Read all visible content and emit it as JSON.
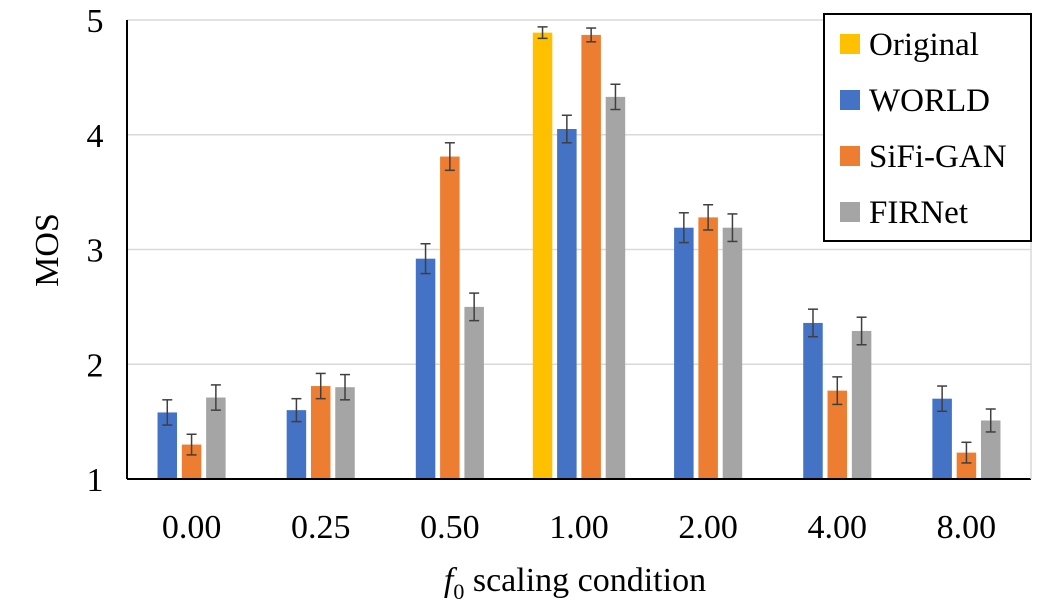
{
  "chart_data": {
    "type": "bar",
    "title": "",
    "xlabel_prefix": "f",
    "xlabel_subscript": "0",
    "xlabel_suffix": " scaling condition",
    "ylabel": "MOS",
    "ylim": [
      1,
      5
    ],
    "yticks": [
      "1",
      "2",
      "3",
      "4",
      "5"
    ],
    "grid": true,
    "legend_position": "top-right",
    "categories": [
      "0.00",
      "0.25",
      "0.50",
      "1.00",
      "2.00",
      "4.00",
      "8.00"
    ],
    "series": [
      {
        "name": "Original",
        "color": "#FFC000",
        "values": [
          null,
          null,
          null,
          4.89,
          null,
          null,
          null
        ],
        "errors": [
          null,
          null,
          null,
          0.05,
          null,
          null,
          null
        ]
      },
      {
        "name": "WORLD",
        "color": "#4472C4",
        "values": [
          1.58,
          1.6,
          2.92,
          4.05,
          3.19,
          2.36,
          1.7
        ],
        "errors": [
          0.11,
          0.1,
          0.13,
          0.12,
          0.13,
          0.12,
          0.11
        ]
      },
      {
        "name": "SiFi-GAN",
        "color": "#ED7D31",
        "values": [
          1.3,
          1.81,
          3.81,
          4.87,
          3.28,
          1.77,
          1.23
        ],
        "errors": [
          0.09,
          0.11,
          0.12,
          0.06,
          0.11,
          0.12,
          0.09
        ]
      },
      {
        "name": "FIRNet",
        "color": "#A5A5A5",
        "values": [
          1.71,
          1.8,
          2.5,
          4.33,
          3.19,
          2.29,
          1.51
        ],
        "errors": [
          0.11,
          0.11,
          0.12,
          0.11,
          0.12,
          0.12,
          0.1
        ]
      }
    ]
  }
}
